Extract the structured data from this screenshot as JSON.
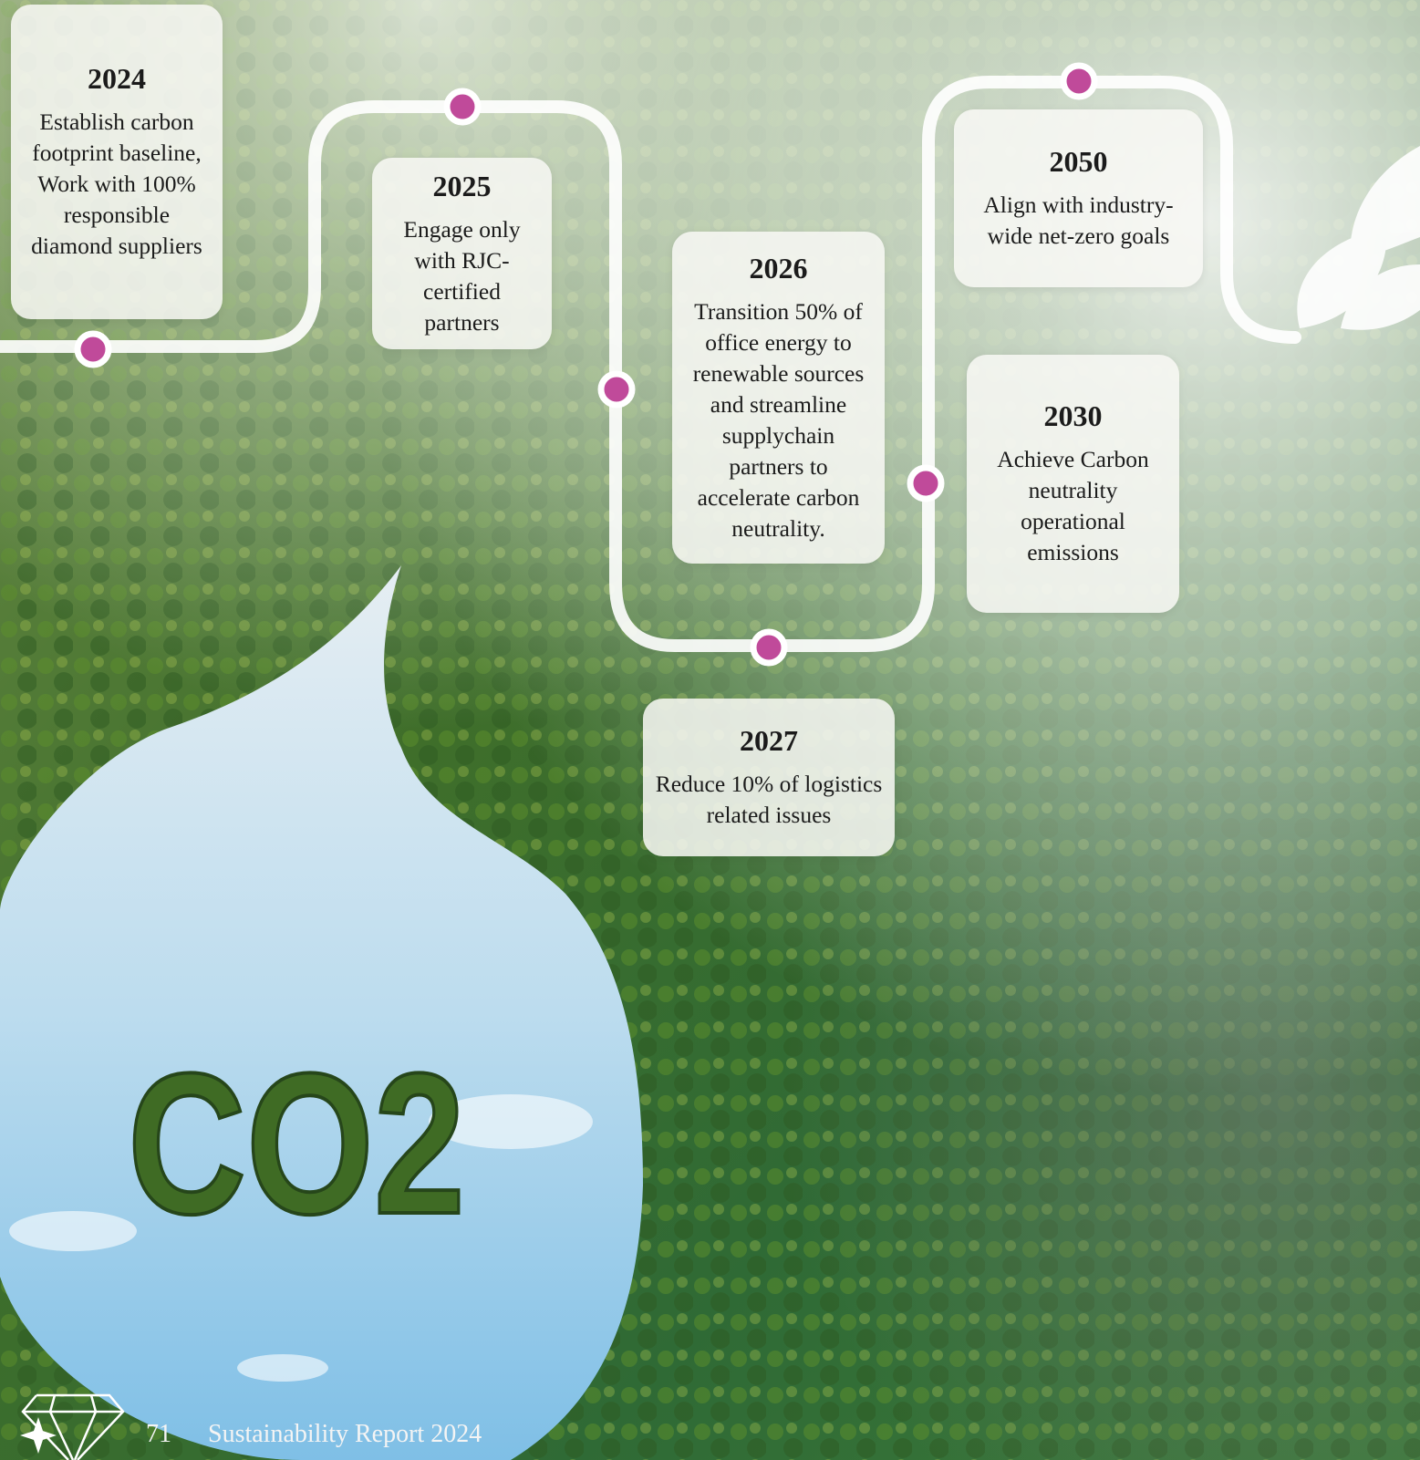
{
  "milestones": [
    {
      "year": "2024",
      "text": "Establish carbon footprint baseline, Work with 100% responsible diamond suppliers"
    },
    {
      "year": "2025",
      "text": "Engage only with RJC-certified partners"
    },
    {
      "year": "2026",
      "text": "Transition 50% of office energy to renewable sources and streamline supplychain partners to accelerate carbon neutrality."
    },
    {
      "year": "2027",
      "text": "Reduce 10% of logistics related issues"
    },
    {
      "year": "2030",
      "text": "Achieve Carbon neutrality operational emissions"
    },
    {
      "year": "2050",
      "text": "Align with industry-wide net-zero goals"
    }
  ],
  "illustration": {
    "label": "CO2"
  },
  "footer": {
    "page_number": "71",
    "title": "Sustainability Report 2024"
  }
}
